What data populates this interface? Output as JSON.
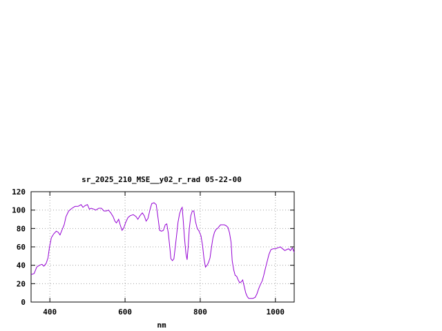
{
  "chart_data": {
    "type": "line",
    "title": "sr_2025_210_MSE__y02_r_rad 05-22-00",
    "xlabel": "nm",
    "ylabel": "",
    "xlim": [
      350,
      1050
    ],
    "ylim": [
      0,
      120
    ],
    "grid": true,
    "xticks": [
      400,
      600,
      800,
      1000
    ],
    "yticks": [
      0,
      20,
      40,
      60,
      80,
      100,
      120
    ],
    "series": [
      {
        "color": "#9400d3",
        "points": [
          [
            350,
            30
          ],
          [
            358,
            31
          ],
          [
            365,
            38
          ],
          [
            372,
            40
          ],
          [
            379,
            41
          ],
          [
            384,
            39
          ],
          [
            390,
            42
          ],
          [
            395,
            48
          ],
          [
            399,
            60
          ],
          [
            404,
            70
          ],
          [
            410,
            74
          ],
          [
            417,
            77
          ],
          [
            422,
            76
          ],
          [
            427,
            73
          ],
          [
            432,
            78
          ],
          [
            438,
            84
          ],
          [
            443,
            93
          ],
          [
            450,
            99
          ],
          [
            459,
            102
          ],
          [
            467,
            104
          ],
          [
            475,
            104
          ],
          [
            483,
            106
          ],
          [
            488,
            103
          ],
          [
            494,
            105
          ],
          [
            500,
            106
          ],
          [
            505,
            101
          ],
          [
            510,
            102
          ],
          [
            517,
            101
          ],
          [
            522,
            100
          ],
          [
            530,
            102
          ],
          [
            537,
            102
          ],
          [
            544,
            99
          ],
          [
            550,
            99
          ],
          [
            556,
            100
          ],
          [
            562,
            97
          ],
          [
            568,
            93
          ],
          [
            573,
            88
          ],
          [
            577,
            86
          ],
          [
            583,
            90
          ],
          [
            587,
            84
          ],
          [
            592,
            78
          ],
          [
            596,
            80
          ],
          [
            602,
            87
          ],
          [
            608,
            92
          ],
          [
            614,
            94
          ],
          [
            622,
            95
          ],
          [
            629,
            93
          ],
          [
            634,
            90
          ],
          [
            640,
            94
          ],
          [
            646,
            97
          ],
          [
            651,
            94
          ],
          [
            656,
            88
          ],
          [
            661,
            91
          ],
          [
            666,
            100
          ],
          [
            671,
            107
          ],
          [
            677,
            108
          ],
          [
            683,
            106
          ],
          [
            687,
            94
          ],
          [
            692,
            78
          ],
          [
            697,
            77
          ],
          [
            702,
            78
          ],
          [
            707,
            84
          ],
          [
            711,
            85
          ],
          [
            715,
            75
          ],
          [
            719,
            60
          ],
          [
            722,
            47
          ],
          [
            726,
            45
          ],
          [
            730,
            47
          ],
          [
            733,
            58
          ],
          [
            737,
            72
          ],
          [
            741,
            87
          ],
          [
            745,
            96
          ],
          [
            749,
            101
          ],
          [
            752,
            103
          ],
          [
            755,
            88
          ],
          [
            758,
            70
          ],
          [
            762,
            53
          ],
          [
            765,
            46
          ],
          [
            768,
            60
          ],
          [
            771,
            80
          ],
          [
            775,
            94
          ],
          [
            779,
            99
          ],
          [
            783,
            99
          ],
          [
            787,
            88
          ],
          [
            792,
            80
          ],
          [
            797,
            77
          ],
          [
            802,
            72
          ],
          [
            806,
            62
          ],
          [
            810,
            47
          ],
          [
            814,
            38
          ],
          [
            818,
            40
          ],
          [
            822,
            43
          ],
          [
            826,
            48
          ],
          [
            830,
            60
          ],
          [
            834,
            70
          ],
          [
            838,
            76
          ],
          [
            842,
            79
          ],
          [
            846,
            80
          ],
          [
            850,
            82
          ],
          [
            854,
            84
          ],
          [
            859,
            84
          ],
          [
            864,
            84
          ],
          [
            869,
            83
          ],
          [
            874,
            81
          ],
          [
            878,
            75
          ],
          [
            882,
            65
          ],
          [
            885,
            45
          ],
          [
            889,
            35
          ],
          [
            893,
            29
          ],
          [
            897,
            28
          ],
          [
            901,
            24
          ],
          [
            905,
            21
          ],
          [
            909,
            22
          ],
          [
            913,
            24
          ],
          [
            917,
            17
          ],
          [
            921,
            10
          ],
          [
            925,
            6
          ],
          [
            929,
            4
          ],
          [
            934,
            4
          ],
          [
            940,
            4
          ],
          [
            946,
            5
          ],
          [
            951,
            9
          ],
          [
            955,
            14
          ],
          [
            960,
            19
          ],
          [
            965,
            23
          ],
          [
            969,
            29
          ],
          [
            973,
            36
          ],
          [
            978,
            44
          ],
          [
            983,
            52
          ],
          [
            988,
            57
          ],
          [
            994,
            58
          ],
          [
            1000,
            58
          ],
          [
            1007,
            59
          ],
          [
            1013,
            60
          ],
          [
            1019,
            58
          ],
          [
            1025,
            56
          ],
          [
            1030,
            57
          ],
          [
            1035,
            58
          ],
          [
            1040,
            56
          ],
          [
            1045,
            59
          ],
          [
            1050,
            54
          ]
        ]
      }
    ]
  }
}
